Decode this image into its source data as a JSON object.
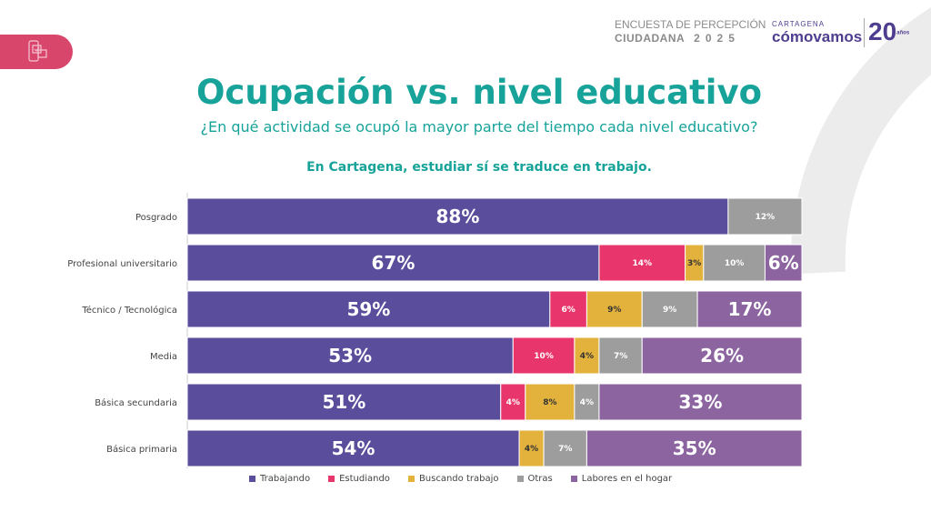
{
  "header": {
    "survey_line1": "ENCUESTA DE PERCEPCIÓN",
    "survey_line2": "CIUDADANA",
    "year": "2025",
    "brand_city": "CARTAGENA",
    "brand_name": "cómovamos",
    "anniversary": "20",
    "anniversary_sub": "años"
  },
  "title": "Ocupación vs. nivel educativo",
  "subtitle": "¿En qué actividad se ocupó la mayor parte del tiempo cada nivel educativo?",
  "headline": "En Cartagena, estudiar sí se traduce en trabajo.",
  "chart_data": {
    "type": "bar",
    "orientation": "horizontal",
    "stacked": true,
    "categories": [
      "Posgrado",
      "Profesional universitario",
      "Técnico / Tecnológica",
      "Media",
      "Básica secundaria",
      "Básica primaria"
    ],
    "series": [
      {
        "name": "Trabajando",
        "color": "#5a4e9c",
        "values": [
          88,
          67,
          59,
          53,
          51,
          54
        ]
      },
      {
        "name": "Estudiando",
        "color": "#e8366c",
        "values": [
          0,
          14,
          6,
          10,
          4,
          0
        ]
      },
      {
        "name": "Buscando trabajo",
        "color": "#e3b23c",
        "values": [
          0,
          3,
          9,
          4,
          8,
          4
        ]
      },
      {
        "name": "Otras",
        "color": "#9d9d9d",
        "values": [
          12,
          10,
          9,
          7,
          4,
          7
        ]
      },
      {
        "name": "Labores en el hogar",
        "color": "#8b64a0",
        "values": [
          0,
          6,
          17,
          26,
          33,
          35
        ]
      }
    ],
    "unit": "%",
    "xlim": [
      0,
      100
    ],
    "legend": "bottom"
  }
}
